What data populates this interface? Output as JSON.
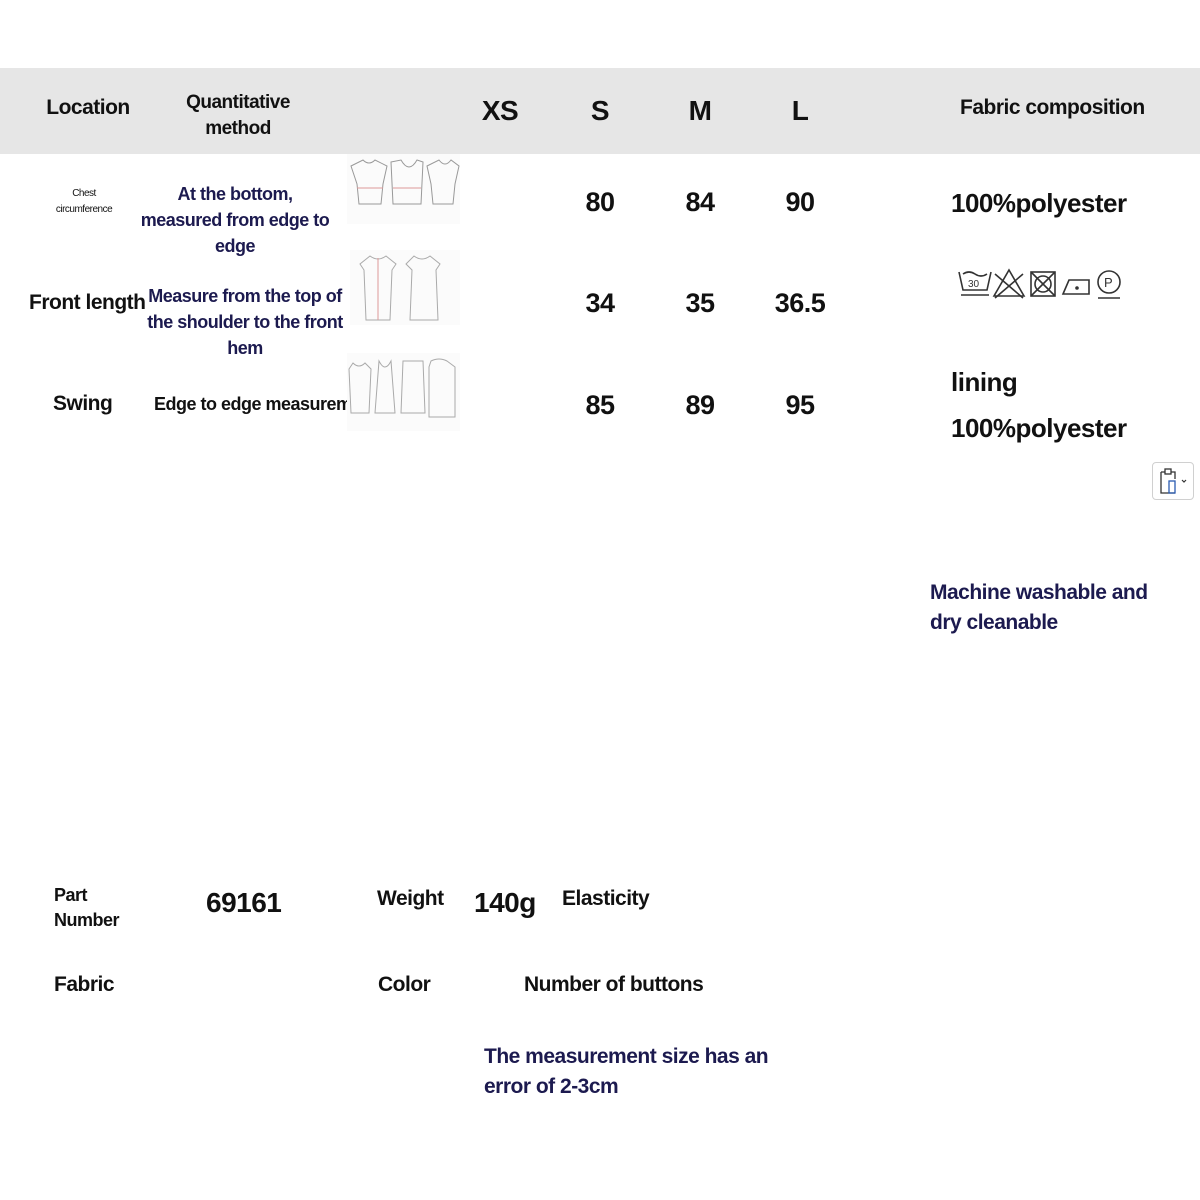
{
  "header": {
    "location": "Location",
    "method": "Quantitative method",
    "sizes": [
      "XS",
      "S",
      "M",
      "L"
    ],
    "fabric": "Fabric composition"
  },
  "rows": [
    {
      "location": "Chest circumference",
      "method": "At the bottom, measured from edge to edge",
      "xs": "",
      "s": "80",
      "m": "84",
      "l": "90"
    },
    {
      "location": "Front length",
      "method": "Measure from the top of the shoulder to the front hem",
      "xs": "",
      "s": "34",
      "m": "35",
      "l": "36.5"
    },
    {
      "location": "Swing",
      "method": "Edge to edge measurement",
      "xs": "",
      "s": "85",
      "m": "89",
      "l": "95"
    }
  ],
  "fabric": {
    "main": "100%polyester",
    "care_icons": [
      "wash-30-icon",
      "no-bleach-icon",
      "no-tumble-dry-icon",
      "iron-low-icon",
      "dry-clean-p-icon"
    ],
    "wash_temp": "30",
    "lining_label": "lining",
    "lining": "100%polyester",
    "care_note": "Machine washable and dry cleanable"
  },
  "details": {
    "part_number_label": "Part Number",
    "part_number": "69161",
    "weight_label": "Weight",
    "weight": "140g",
    "elasticity_label": "Elasticity",
    "fabric_label": "Fabric",
    "color_label": "Color",
    "buttons_label": "Number of buttons",
    "note": "The measurement size has an error of 2-3cm"
  },
  "colors": {
    "header_bg": "#e6e6e6",
    "accent_text": "#1c1a4f"
  }
}
